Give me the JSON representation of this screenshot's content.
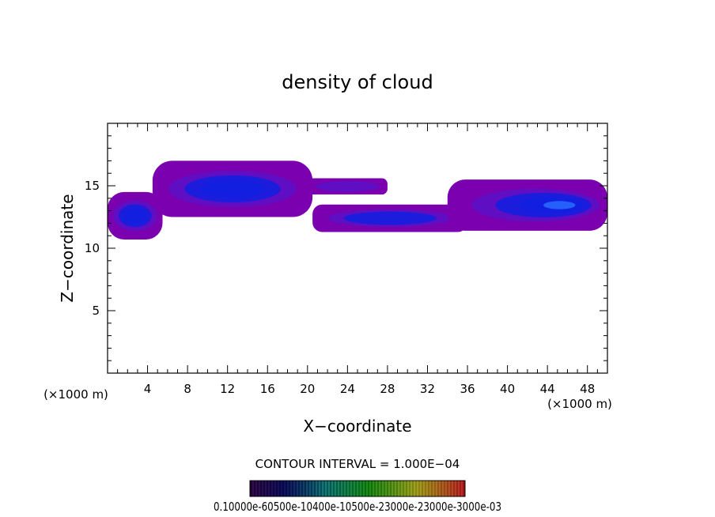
{
  "chart_data": {
    "type": "heatmap",
    "title": "density of cloud",
    "xlabel": "X−coordinate",
    "ylabel": "Z−coordinate",
    "x_unit_left": "(×1000 m)",
    "x_unit_right": "(×1000 m)",
    "xlim": [
      0,
      50
    ],
    "ylim": [
      0,
      20
    ],
    "x_ticks": [
      4,
      8,
      12,
      16,
      20,
      24,
      28,
      32,
      36,
      40,
      44,
      48
    ],
    "y_ticks": [
      5,
      10,
      15
    ],
    "contour_interval_text": "CONTOUR INTERVAL = 1.000E−04",
    "colorbar_labels_text": "0.10000e-60500e-10400e-10500e-23000e-23000e-3000e-03",
    "cloud_regions": [
      {
        "name": "left",
        "x": [
          0,
          5.5
        ],
        "z": [
          10.7,
          14.5
        ],
        "level": 0.8
      },
      {
        "name": "upper-left-center",
        "x": [
          4.5,
          20.5
        ],
        "z": [
          12.5,
          17.0
        ],
        "level": 0.65
      },
      {
        "name": "streak",
        "x": [
          20,
          28
        ],
        "z": [
          14.3,
          15.6
        ],
        "level": 0.25
      },
      {
        "name": "lower-center",
        "x": [
          20.5,
          36
        ],
        "z": [
          11.3,
          13.5
        ],
        "level": 0.5
      },
      {
        "name": "right",
        "x": [
          34,
          50
        ],
        "z": [
          11.4,
          15.5
        ],
        "level": 0.9
      }
    ],
    "colors": {
      "low": "#7a00b0",
      "mid": "#5a10c8",
      "high": "#1020e0",
      "peak": "#2a6cff"
    }
  }
}
